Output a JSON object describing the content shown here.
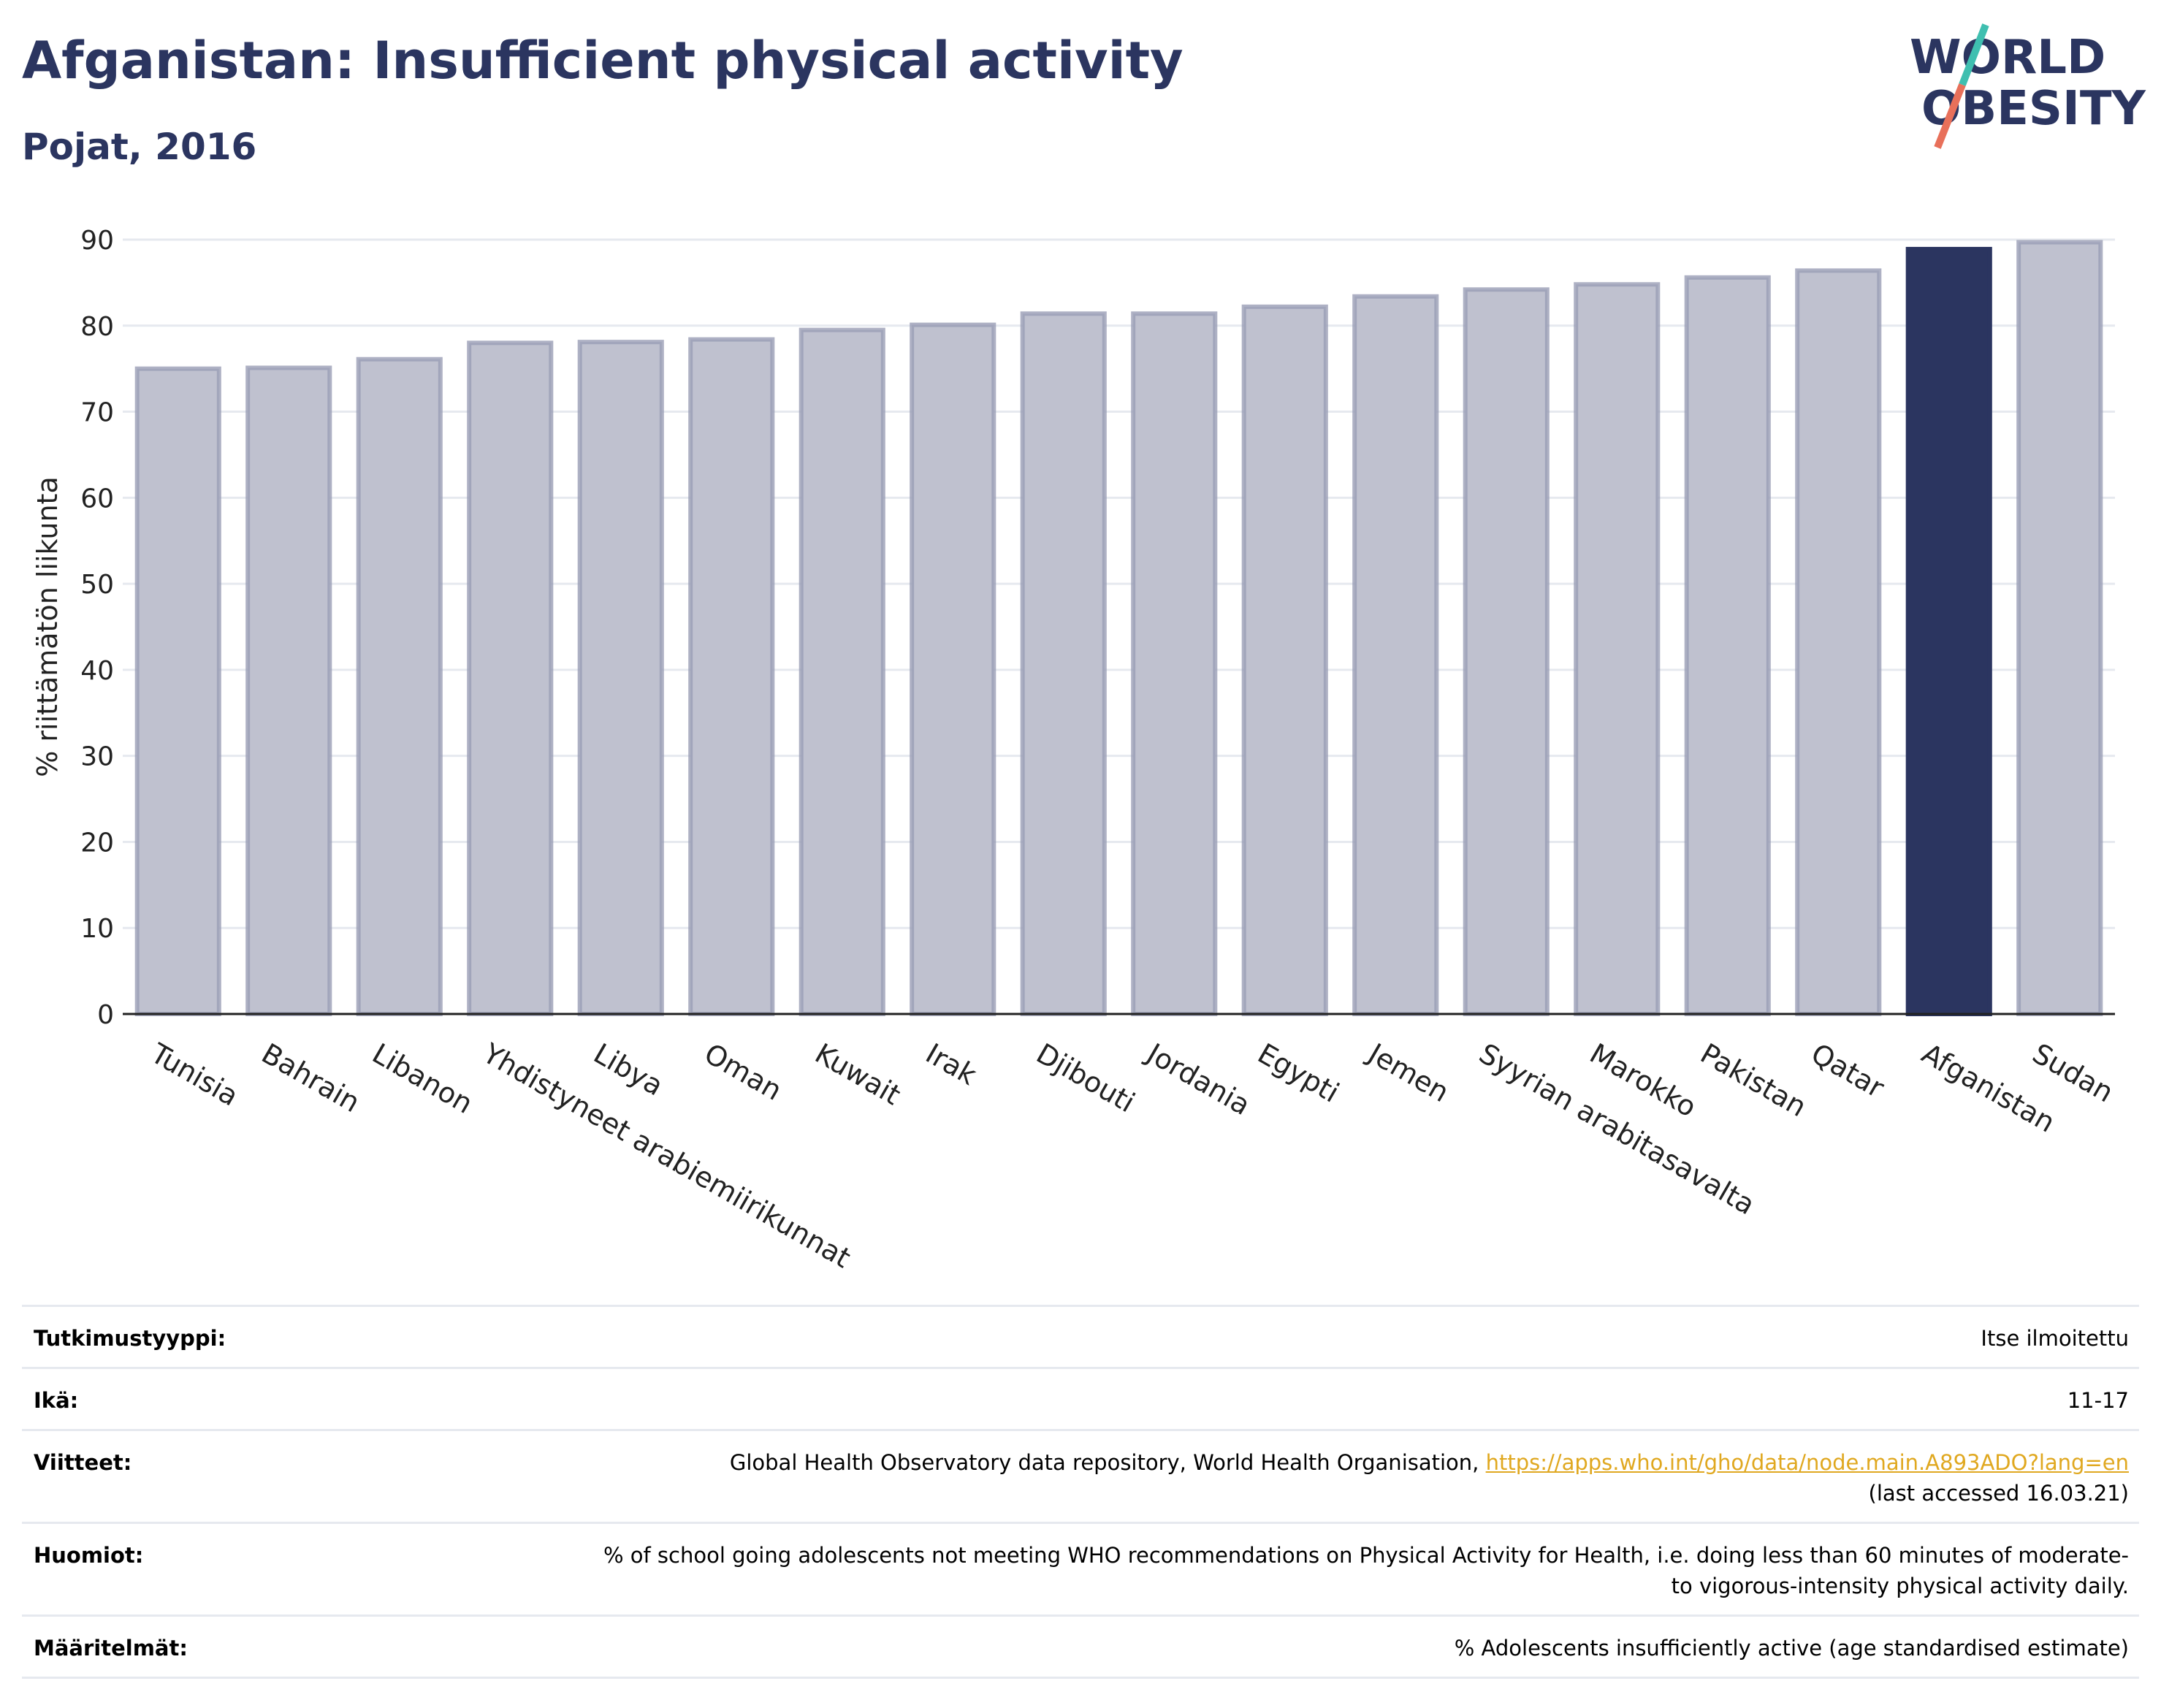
{
  "header": {
    "title": "Afganistan: Insufficient physical activity",
    "subtitle": "Pojat, 2016"
  },
  "logo": {
    "line1": "WORLD",
    "line2": "OBESITY",
    "text_color": "#2b3560",
    "slash_top_color": "#3fbfb0",
    "slash_bottom_color": "#e8705a"
  },
  "chart_data": {
    "type": "bar",
    "categories": [
      "Tunisia",
      "Bahrain",
      "Libanon",
      "Yhdistyneet arabiemiirikunnat",
      "Libya",
      "Oman",
      "Kuwait",
      "Irak",
      "Djibouti",
      "Jordania",
      "Egypti",
      "Jemen",
      "Syyrian arabitasavalta",
      "Marokko",
      "Pakistan",
      "Qatar",
      "Afganistan",
      "Sudan"
    ],
    "values": [
      75.0,
      75.1,
      76.1,
      78.0,
      78.1,
      78.4,
      79.5,
      80.1,
      81.4,
      81.4,
      82.2,
      83.4,
      84.2,
      84.8,
      85.6,
      86.4,
      88.9,
      89.7
    ],
    "highlight": "Afganistan",
    "title": "",
    "xlabel": "",
    "ylabel": "% riittämätön liikunta",
    "ylim": [
      0,
      90
    ],
    "yticks": [
      0,
      10,
      20,
      30,
      40,
      50,
      60,
      70,
      80,
      90
    ],
    "grid": true,
    "colors": {
      "bar": "#bfc1cf",
      "bar_edge": "#9a9eb5",
      "highlight": "#2b3560",
      "grid": "#e6e9ef",
      "axis": "#222222"
    }
  },
  "info": {
    "rows": [
      {
        "label": "Tutkimustyyppi:",
        "value": "Itse ilmoitettu"
      },
      {
        "label": "Ikä:",
        "value": "11-17"
      },
      {
        "label": "Viitteet:",
        "value": "Global Health Observatory data repository, World Health Organisation,",
        "link": "https://apps.who.int/gho/data/node.main.A893ADO?lang=en",
        "value2": "(last accessed 16.03.21)"
      },
      {
        "label": "Huomiot:",
        "value": "% of school going adolescents not meeting WHO recommendations on Physical Activity for Health, i.e. doing less than 60 minutes of moderate- to vigorous-intensity physical activity daily."
      },
      {
        "label": "Määritelmät:",
        "value": "% Adolescents insufficiently active (age standardised estimate)"
      }
    ]
  }
}
